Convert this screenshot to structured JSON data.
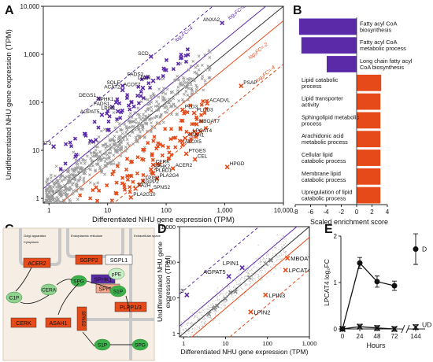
{
  "panel_letters": [
    "A",
    "B",
    "C",
    "D",
    "E"
  ],
  "chart_data": [
    {
      "panel": "A",
      "type": "scatter",
      "xlabel": "Differentiated NHU gene expression (TPM)",
      "ylabel": "Undifferentiated NHU gene expression (TPM)",
      "xscale": "log",
      "yscale": "log",
      "xlim": [
        0.8,
        10000
      ],
      "ylim": [
        0.8,
        10000
      ],
      "xticks": [
        "1",
        "10",
        "100",
        "1,000",
        "10,000"
      ],
      "yticks": [
        "1",
        "10",
        "100",
        "1,000",
        "10,000"
      ],
      "reference_lines": [
        "log₂FC=4",
        "log₂FC=2",
        "log₂FC=-2",
        "log₂FC=-4"
      ],
      "up_points": [
        {
          "label": "ANXA2",
          "x": 900,
          "y": 4500
        },
        {
          "label": "SCD",
          "x": 55,
          "y": 900
        },
        {
          "label": "FADS2",
          "x": 45,
          "y": 330
        },
        {
          "label": "LDLR",
          "x": 60,
          "y": 280
        },
        {
          "label": "SQLE",
          "x": 18,
          "y": 220
        },
        {
          "label": "ACOT7",
          "x": 40,
          "y": 200
        },
        {
          "label": "ACAT2",
          "x": 18,
          "y": 180
        },
        {
          "label": "DEGS1",
          "x": 7,
          "y": 120
        },
        {
          "label": "SPHK1",
          "x": 14,
          "y": 100
        },
        {
          "label": "FADS1",
          "x": 12,
          "y": 80
        },
        {
          "label": "LPIN1",
          "x": 15,
          "y": 65
        },
        {
          "label": "AGPAT5",
          "x": 8,
          "y": 55
        },
        {
          "label": "GPAT3",
          "x": 1.2,
          "y": 12
        }
      ],
      "down_points": [
        {
          "label": "PSAP",
          "x": 1900,
          "y": 220
        },
        {
          "label": "ACADVL",
          "x": 500,
          "y": 95
        },
        {
          "label": "PLD3",
          "x": 190,
          "y": 70
        },
        {
          "label": "PLCD3",
          "x": 300,
          "y": 60
        },
        {
          "label": "MBOAT7",
          "x": 330,
          "y": 35
        },
        {
          "label": "LPCAT4",
          "x": 260,
          "y": 22
        },
        {
          "label": "ASAH1",
          "x": 210,
          "y": 18
        },
        {
          "label": "ALOX5",
          "x": 190,
          "y": 13
        },
        {
          "label": "PTGES",
          "x": 220,
          "y": 8.5
        },
        {
          "label": "CEL",
          "x": 310,
          "y": 6.5
        },
        {
          "label": "HPGD",
          "x": 1100,
          "y": 4.5
        },
        {
          "label": "ACER2",
          "x": 130,
          "y": 4.2
        },
        {
          "label": "CERK",
          "x": 60,
          "y": 5
        },
        {
          "label": "SPHK2",
          "x": 55,
          "y": 4
        },
        {
          "label": "PLBD1",
          "x": 60,
          "y": 3.3
        },
        {
          "label": "PLA2G4",
          "x": 70,
          "y": 2.6
        },
        {
          "label": "LPIN2",
          "x": 40,
          "y": 2.3
        },
        {
          "label": "SGPP2",
          "x": 35,
          "y": 1.9
        },
        {
          "label": "FA2H",
          "x": 30,
          "y": 1.6
        },
        {
          "label": "SPNS2",
          "x": 55,
          "y": 1.45
        },
        {
          "label": "PLA2G10",
          "x": 25,
          "y": 1.05
        }
      ]
    },
    {
      "panel": "B",
      "type": "bar",
      "xlabel": "Scaled enrichment score",
      "xlim": [
        -8,
        4
      ],
      "xticks": [
        "-8",
        "-6",
        "-4",
        "-2",
        "0",
        "2",
        "4"
      ],
      "categories": [
        "Fatty acyl CoA biosynthesis",
        "Fatty acyl CoA metabolic process",
        "Long chain fatty acyl CoA biosynthesis",
        "Lipid catabolic process",
        "Lipid transporter activity",
        "Sphingolipid metabolic process",
        "Arachidonic acid metabolic process",
        "Cellular lipid catabolic process",
        "Membrane lipid catabolic process",
        "Upregulation of lipid catabolic process"
      ],
      "values": [
        -7.5,
        -7.2,
        -3.9,
        3.2,
        3.1,
        3.1,
        3.1,
        3.1,
        3.1,
        3.1
      ],
      "colors": {
        "negative": "#5b2aa8",
        "positive": "#e64a19"
      }
    },
    {
      "panel": "D",
      "type": "scatter",
      "xlabel": "Differentiated NHU gene expression (TPM)",
      "ylabel": "Undifferentiated NHU gene expression (TPM)",
      "xscale": "log",
      "yscale": "log",
      "xlim": [
        0.8,
        1000
      ],
      "ylim": [
        0.8,
        1000
      ],
      "xticks": [
        "1",
        "10",
        "100",
        "1,000"
      ],
      "yticks": [
        "1",
        "10",
        "100",
        "1,000"
      ],
      "up_points": [
        {
          "label": "LPIN1",
          "x": 25,
          "y": 70
        },
        {
          "label": "AGPAT5",
          "x": 12,
          "y": 40
        },
        {
          "label": "GPAT3",
          "x": 1.2,
          "y": 12
        }
      ],
      "down_points": [
        {
          "label": "MBOAT7",
          "x": 300,
          "y": 130
        },
        {
          "label": "LPCAT4",
          "x": 270,
          "y": 60
        },
        {
          "label": "LPIN3",
          "x": 90,
          "y": 12
        },
        {
          "label": "LPIN2",
          "x": 40,
          "y": 4
        }
      ]
    },
    {
      "panel": "E",
      "type": "line",
      "ylabel": "LPCAT4 log₂FC",
      "xlabel": "Hours",
      "categories": [
        "0",
        "24",
        "48",
        "72",
        "144"
      ],
      "ylim": [
        0,
        2
      ],
      "yticks": [
        "0",
        "1",
        "2"
      ],
      "series": [
        {
          "name": "D",
          "values": [
            0,
            1.42,
            1.02,
            0.93,
            1.72
          ],
          "errors": [
            0,
            0.12,
            0.12,
            0.1,
            0.33
          ]
        },
        {
          "name": "UD",
          "values": [
            0,
            0.05,
            0.02,
            0.0,
            0.04
          ],
          "errors": [
            0,
            0.05,
            0.05,
            0.05,
            0.05
          ]
        }
      ]
    }
  ],
  "diagram": {
    "compartments": [
      "Golgi apparatus",
      "Cytoplasm",
      "Endoplasmic reticulum",
      "Extracellular space"
    ],
    "enzymes": [
      "ACER2",
      "SGPP2",
      "SGPL1",
      "SPHK1",
      "SPHK2",
      "CERK",
      "ASAH1",
      "PLPP1/3",
      "SPNS2"
    ],
    "metabolites": [
      "C1P",
      "CERA",
      "SPG",
      "S1P",
      "pPE",
      "S1P",
      "SPG"
    ]
  }
}
